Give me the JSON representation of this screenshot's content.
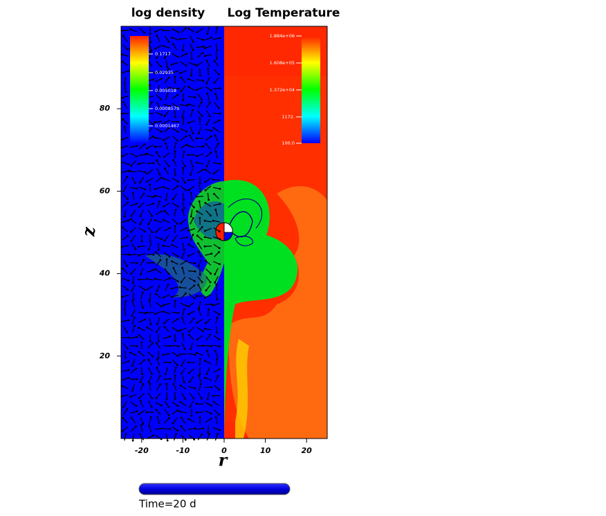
{
  "chart_data": {
    "type": "field",
    "panels": [
      "log density",
      "Log Temperature"
    ],
    "xlabel": "r",
    "ylabel": "z",
    "xlim": [
      -25,
      25
    ],
    "ylim": [
      0,
      100
    ],
    "xticks": [
      -20,
      -10,
      0,
      10,
      20
    ],
    "yticks": [
      20,
      40,
      60,
      80
    ],
    "colorbars": [
      {
        "labels": [
          "0.1717",
          "0.02935",
          "0.005018",
          "0.0008579",
          "0.0001467"
        ]
      },
      {
        "labels": [
          "1.884e+06",
          "1.608e+05",
          "1.372e+04",
          "1172.",
          "100.0"
        ]
      }
    ],
    "time": "Time=20 d"
  }
}
